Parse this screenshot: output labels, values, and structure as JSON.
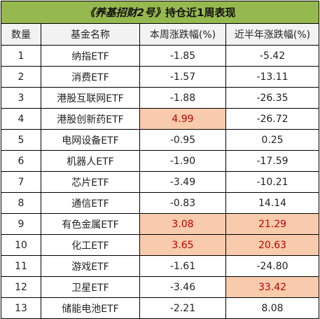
{
  "title_part1": "《养基招财2号》",
  "title_part2": "持仓近1周表现",
  "headers": [
    "数量",
    "基金名称",
    "本周涨跌幅(%)",
    "近半年涨跌幅(%)"
  ],
  "rows": [
    {
      "no": "1",
      "name": "纳指ETF",
      "week": "-1.85",
      "half": "-5.42",
      "week_hl": false,
      "half_hl": false
    },
    {
      "no": "2",
      "name": "消费ETF",
      "week": "-1.57",
      "half": "-13.11",
      "week_hl": false,
      "half_hl": false
    },
    {
      "no": "3",
      "name": "港股互联网ETF",
      "week": "-1.88",
      "half": "-26.35",
      "week_hl": false,
      "half_hl": false
    },
    {
      "no": "4",
      "name": "港股创新药ETF",
      "week": "4.99",
      "half": "-26.72",
      "week_hl": true,
      "half_hl": false
    },
    {
      "no": "5",
      "name": "电网设备ETF",
      "week": "-0.95",
      "half": "0.25",
      "week_hl": false,
      "half_hl": false
    },
    {
      "no": "6",
      "name": "机器人ETF",
      "week": "-1.90",
      "half": "-17.59",
      "week_hl": false,
      "half_hl": false
    },
    {
      "no": "7",
      "name": "芯片ETF",
      "week": "-3.49",
      "half": "-10.21",
      "week_hl": false,
      "half_hl": false
    },
    {
      "no": "8",
      "name": "通信ETF",
      "week": "-0.83",
      "half": "14.14",
      "week_hl": false,
      "half_hl": false
    },
    {
      "no": "9",
      "name": "有色金属ETF",
      "week": "3.08",
      "half": "21.29",
      "week_hl": true,
      "half_hl": true
    },
    {
      "no": "10",
      "name": "化工ETF",
      "week": "3.65",
      "half": "20.63",
      "week_hl": true,
      "half_hl": true
    },
    {
      "no": "11",
      "name": "游戏ETF",
      "week": "-1.61",
      "half": "-24.80",
      "week_hl": false,
      "half_hl": false
    },
    {
      "no": "12",
      "name": "卫星ETF",
      "week": "-3.46",
      "half": "33.42",
      "week_hl": false,
      "half_hl": true
    },
    {
      "no": "13",
      "name": "储能电池ETF",
      "week": "-2.21",
      "half": "8.08",
      "week_hl": false,
      "half_hl": false
    }
  ],
  "colors": {
    "title_bg": "#96b94f",
    "header_bg": "#f2f2f2",
    "highlight_bg": "#f8cbad",
    "highlight_text": "#c00000"
  }
}
